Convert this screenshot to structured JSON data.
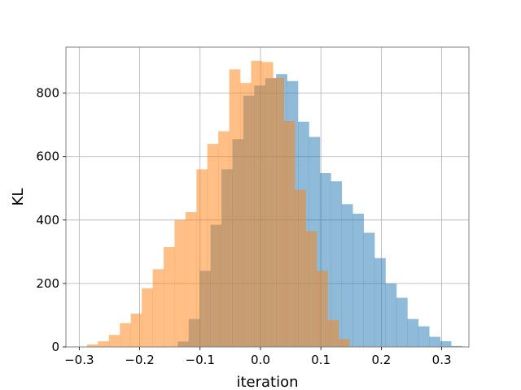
{
  "chart_data": {
    "type": "histogram",
    "title": "",
    "xlabel": "iteration",
    "ylabel": "KL",
    "xlim": [
      -0.322,
      0.345
    ],
    "ylim": [
      0,
      945
    ],
    "grid": true,
    "x_ticks": [
      -0.3,
      -0.2,
      -0.1,
      0.0,
      0.1,
      0.2,
      0.3
    ],
    "x_tick_labels": [
      "−0.3",
      "−0.2",
      "−0.1",
      "0.0",
      "0.1",
      "0.2",
      "0.3"
    ],
    "y_ticks": [
      0,
      200,
      400,
      600,
      800
    ],
    "y_tick_labels": [
      "0",
      "200",
      "400",
      "600",
      "800"
    ],
    "series": [
      {
        "color": "#1f77b4",
        "alpha": 0.5,
        "bin_start": -0.137,
        "bin_width": 0.0181,
        "counts": [
          17,
          88,
          240,
          385,
          560,
          655,
          792,
          824,
          847,
          860,
          838,
          710,
          662,
          548,
          522,
          450,
          420,
          360,
          280,
          200,
          155,
          88,
          65,
          32,
          18,
          3
        ]
      },
      {
        "color": "#ff7f0e",
        "alpha": 0.5,
        "bin_start": -0.287,
        "bin_width": 0.0181,
        "counts": [
          8,
          18,
          38,
          75,
          105,
          185,
          245,
          315,
          400,
          425,
          560,
          640,
          680,
          875,
          832,
          902,
          898,
          848,
          712,
          495,
          365,
          240,
          85,
          25
        ]
      }
    ]
  }
}
